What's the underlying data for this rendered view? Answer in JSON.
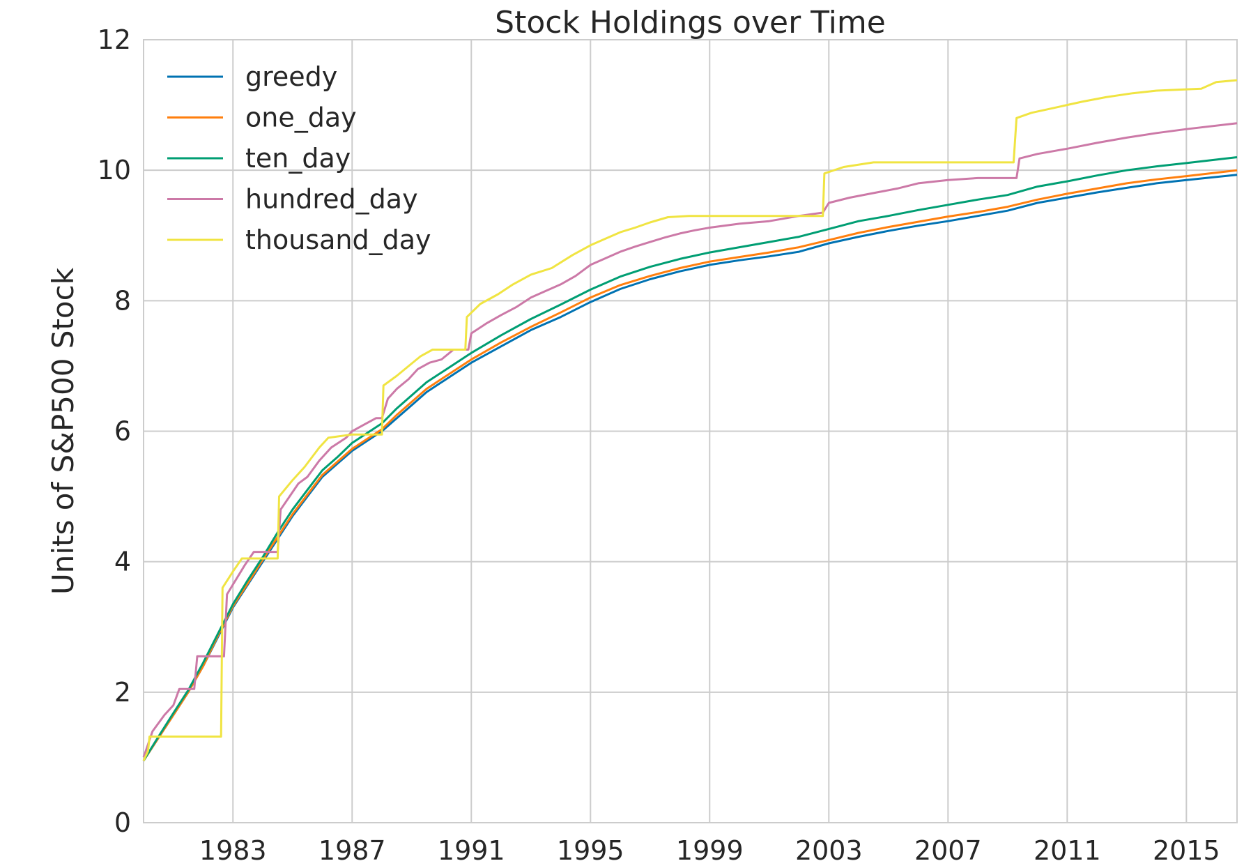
{
  "chart_data": {
    "type": "line",
    "title": "Stock Holdings over Time",
    "xlabel": "",
    "ylabel": "Units of S&P500 Stock",
    "xlim": [
      1980.0,
      2016.7
    ],
    "ylim": [
      0,
      12
    ],
    "x_ticks": [
      1983,
      1987,
      1991,
      1995,
      1999,
      2003,
      2007,
      2011,
      2015
    ],
    "y_ticks": [
      0,
      2,
      4,
      6,
      8,
      10,
      12
    ],
    "grid": true,
    "legend_position": "top-left",
    "series": [
      {
        "name": "greedy",
        "color": "#0072b2",
        "points": [
          [
            1980.0,
            0.95
          ],
          [
            1980.5,
            1.3
          ],
          [
            1981.0,
            1.65
          ],
          [
            1981.5,
            2.0
          ],
          [
            1982.0,
            2.4
          ],
          [
            1982.5,
            2.85
          ],
          [
            1983.0,
            3.3
          ],
          [
            1983.5,
            3.65
          ],
          [
            1984.0,
            4.0
          ],
          [
            1984.5,
            4.35
          ],
          [
            1985.0,
            4.7
          ],
          [
            1985.5,
            5.0
          ],
          [
            1986.0,
            5.3
          ],
          [
            1986.5,
            5.5
          ],
          [
            1987.0,
            5.7
          ],
          [
            1987.5,
            5.85
          ],
          [
            1988.0,
            6.0
          ],
          [
            1988.5,
            6.2
          ],
          [
            1989.0,
            6.4
          ],
          [
            1989.5,
            6.6
          ],
          [
            1990.0,
            6.75
          ],
          [
            1990.5,
            6.9
          ],
          [
            1991.0,
            7.05
          ],
          [
            1992.0,
            7.3
          ],
          [
            1993.0,
            7.55
          ],
          [
            1994.0,
            7.75
          ],
          [
            1995.0,
            7.98
          ],
          [
            1996.0,
            8.18
          ],
          [
            1997.0,
            8.33
          ],
          [
            1998.0,
            8.45
          ],
          [
            1999.0,
            8.55
          ],
          [
            2000.0,
            8.62
          ],
          [
            2001.0,
            8.68
          ],
          [
            2002.0,
            8.75
          ],
          [
            2003.0,
            8.88
          ],
          [
            2004.0,
            8.98
          ],
          [
            2005.0,
            9.07
          ],
          [
            2006.0,
            9.15
          ],
          [
            2007.0,
            9.22
          ],
          [
            2008.0,
            9.3
          ],
          [
            2009.0,
            9.38
          ],
          [
            2010.0,
            9.5
          ],
          [
            2011.0,
            9.58
          ],
          [
            2012.0,
            9.66
          ],
          [
            2013.0,
            9.73
          ],
          [
            2014.0,
            9.8
          ],
          [
            2015.0,
            9.85
          ],
          [
            2016.7,
            9.93
          ]
        ]
      },
      {
        "name": "one_day",
        "color": "#ff7f0e",
        "points": [
          [
            1980.0,
            0.95
          ],
          [
            1980.5,
            1.3
          ],
          [
            1981.0,
            1.65
          ],
          [
            1981.5,
            2.0
          ],
          [
            1982.0,
            2.4
          ],
          [
            1982.5,
            2.87
          ],
          [
            1983.0,
            3.32
          ],
          [
            1983.5,
            3.67
          ],
          [
            1984.0,
            4.03
          ],
          [
            1984.5,
            4.38
          ],
          [
            1985.0,
            4.73
          ],
          [
            1985.5,
            5.03
          ],
          [
            1986.0,
            5.33
          ],
          [
            1986.5,
            5.53
          ],
          [
            1987.0,
            5.73
          ],
          [
            1987.5,
            5.88
          ],
          [
            1988.0,
            6.03
          ],
          [
            1988.5,
            6.25
          ],
          [
            1989.0,
            6.45
          ],
          [
            1989.5,
            6.65
          ],
          [
            1990.0,
            6.8
          ],
          [
            1990.5,
            6.95
          ],
          [
            1991.0,
            7.1
          ],
          [
            1992.0,
            7.36
          ],
          [
            1993.0,
            7.6
          ],
          [
            1994.0,
            7.82
          ],
          [
            1995.0,
            8.05
          ],
          [
            1996.0,
            8.24
          ],
          [
            1997.0,
            8.38
          ],
          [
            1998.0,
            8.5
          ],
          [
            1999.0,
            8.6
          ],
          [
            2000.0,
            8.67
          ],
          [
            2001.0,
            8.74
          ],
          [
            2002.0,
            8.82
          ],
          [
            2003.0,
            8.93
          ],
          [
            2004.0,
            9.04
          ],
          [
            2005.0,
            9.13
          ],
          [
            2006.0,
            9.21
          ],
          [
            2007.0,
            9.29
          ],
          [
            2008.0,
            9.36
          ],
          [
            2009.0,
            9.44
          ],
          [
            2010.0,
            9.55
          ],
          [
            2011.0,
            9.64
          ],
          [
            2012.0,
            9.72
          ],
          [
            2013.0,
            9.8
          ],
          [
            2014.0,
            9.86
          ],
          [
            2015.0,
            9.91
          ],
          [
            2016.7,
            10.0
          ]
        ]
      },
      {
        "name": "ten_day",
        "color": "#009e73",
        "points": [
          [
            1980.0,
            0.95
          ],
          [
            1980.5,
            1.32
          ],
          [
            1981.0,
            1.68
          ],
          [
            1981.5,
            2.03
          ],
          [
            1982.0,
            2.45
          ],
          [
            1982.5,
            2.9
          ],
          [
            1983.0,
            3.35
          ],
          [
            1983.5,
            3.72
          ],
          [
            1984.0,
            4.07
          ],
          [
            1984.5,
            4.45
          ],
          [
            1985.0,
            4.8
          ],
          [
            1985.5,
            5.1
          ],
          [
            1986.0,
            5.4
          ],
          [
            1986.5,
            5.6
          ],
          [
            1987.0,
            5.82
          ],
          [
            1987.5,
            5.97
          ],
          [
            1988.0,
            6.12
          ],
          [
            1988.5,
            6.35
          ],
          [
            1989.0,
            6.55
          ],
          [
            1989.5,
            6.75
          ],
          [
            1990.0,
            6.9
          ],
          [
            1990.5,
            7.05
          ],
          [
            1991.0,
            7.2
          ],
          [
            1992.0,
            7.47
          ],
          [
            1993.0,
            7.72
          ],
          [
            1994.0,
            7.94
          ],
          [
            1995.0,
            8.17
          ],
          [
            1996.0,
            8.37
          ],
          [
            1997.0,
            8.52
          ],
          [
            1998.0,
            8.64
          ],
          [
            1999.0,
            8.74
          ],
          [
            2000.0,
            8.82
          ],
          [
            2001.0,
            8.9
          ],
          [
            2002.0,
            8.98
          ],
          [
            2003.0,
            9.1
          ],
          [
            2004.0,
            9.22
          ],
          [
            2005.0,
            9.3
          ],
          [
            2006.0,
            9.39
          ],
          [
            2007.0,
            9.47
          ],
          [
            2008.0,
            9.55
          ],
          [
            2009.0,
            9.62
          ],
          [
            2010.0,
            9.75
          ],
          [
            2011.0,
            9.83
          ],
          [
            2012.0,
            9.92
          ],
          [
            2013.0,
            10.0
          ],
          [
            2014.0,
            10.06
          ],
          [
            2015.0,
            10.11
          ],
          [
            2016.7,
            10.2
          ]
        ]
      },
      {
        "name": "hundred_day",
        "color": "#cc79a7",
        "points": [
          [
            1980.0,
            1.0
          ],
          [
            1980.3,
            1.4
          ],
          [
            1980.7,
            1.65
          ],
          [
            1981.0,
            1.8
          ],
          [
            1981.2,
            2.05
          ],
          [
            1981.7,
            2.05
          ],
          [
            1981.8,
            2.55
          ],
          [
            1982.7,
            2.55
          ],
          [
            1982.8,
            3.5
          ],
          [
            1983.0,
            3.65
          ],
          [
            1983.4,
            3.95
          ],
          [
            1983.7,
            4.15
          ],
          [
            1984.5,
            4.15
          ],
          [
            1984.6,
            4.8
          ],
          [
            1984.9,
            5.0
          ],
          [
            1985.2,
            5.2
          ],
          [
            1985.5,
            5.3
          ],
          [
            1985.9,
            5.55
          ],
          [
            1986.3,
            5.75
          ],
          [
            1986.8,
            5.9
          ],
          [
            1987.0,
            6.0
          ],
          [
            1987.4,
            6.1
          ],
          [
            1987.8,
            6.2
          ],
          [
            1988.0,
            6.2
          ],
          [
            1988.2,
            6.5
          ],
          [
            1988.5,
            6.65
          ],
          [
            1988.9,
            6.8
          ],
          [
            1989.2,
            6.95
          ],
          [
            1989.6,
            7.05
          ],
          [
            1990.0,
            7.1
          ],
          [
            1990.4,
            7.25
          ],
          [
            1990.9,
            7.25
          ],
          [
            1991.0,
            7.5
          ],
          [
            1991.5,
            7.65
          ],
          [
            1992.0,
            7.78
          ],
          [
            1992.5,
            7.9
          ],
          [
            1993.0,
            8.05
          ],
          [
            1993.5,
            8.15
          ],
          [
            1994.0,
            8.25
          ],
          [
            1994.5,
            8.38
          ],
          [
            1995.0,
            8.55
          ],
          [
            1995.5,
            8.65
          ],
          [
            1996.0,
            8.75
          ],
          [
            1996.5,
            8.83
          ],
          [
            1997.0,
            8.9
          ],
          [
            1997.5,
            8.97
          ],
          [
            1998.0,
            9.03
          ],
          [
            1998.5,
            9.08
          ],
          [
            1999.0,
            9.12
          ],
          [
            2000.0,
            9.18
          ],
          [
            2001.0,
            9.22
          ],
          [
            2002.0,
            9.3
          ],
          [
            2002.8,
            9.35
          ],
          [
            2003.0,
            9.5
          ],
          [
            2003.7,
            9.58
          ],
          [
            2004.5,
            9.65
          ],
          [
            2005.3,
            9.72
          ],
          [
            2006.0,
            9.8
          ],
          [
            2007.0,
            9.85
          ],
          [
            2008.0,
            9.88
          ],
          [
            2009.3,
            9.88
          ],
          [
            2009.4,
            10.18
          ],
          [
            2010.0,
            10.25
          ],
          [
            2011.0,
            10.33
          ],
          [
            2012.0,
            10.42
          ],
          [
            2013.0,
            10.5
          ],
          [
            2014.0,
            10.57
          ],
          [
            2015.0,
            10.63
          ],
          [
            2016.7,
            10.72
          ]
        ]
      },
      {
        "name": "thousand_day",
        "color": "#f0e442",
        "points": [
          [
            1980.0,
            0.95
          ],
          [
            1980.15,
            1.1
          ],
          [
            1980.2,
            1.32
          ],
          [
            1982.6,
            1.32
          ],
          [
            1982.65,
            3.6
          ],
          [
            1983.0,
            3.85
          ],
          [
            1983.3,
            4.05
          ],
          [
            1984.5,
            4.05
          ],
          [
            1984.55,
            5.0
          ],
          [
            1985.0,
            5.25
          ],
          [
            1985.4,
            5.45
          ],
          [
            1985.9,
            5.75
          ],
          [
            1986.2,
            5.9
          ],
          [
            1987.0,
            5.95
          ],
          [
            1987.5,
            5.95
          ],
          [
            1988.0,
            5.95
          ],
          [
            1988.05,
            6.7
          ],
          [
            1988.5,
            6.85
          ],
          [
            1988.9,
            7.0
          ],
          [
            1989.3,
            7.15
          ],
          [
            1989.7,
            7.25
          ],
          [
            1990.8,
            7.25
          ],
          [
            1990.85,
            7.75
          ],
          [
            1991.3,
            7.95
          ],
          [
            1991.9,
            8.1
          ],
          [
            1992.4,
            8.25
          ],
          [
            1993.0,
            8.4
          ],
          [
            1993.7,
            8.5
          ],
          [
            1994.4,
            8.7
          ],
          [
            1995.0,
            8.85
          ],
          [
            1995.5,
            8.95
          ],
          [
            1996.0,
            9.05
          ],
          [
            1996.5,
            9.12
          ],
          [
            1997.0,
            9.2
          ],
          [
            1997.6,
            9.28
          ],
          [
            1998.3,
            9.3
          ],
          [
            2002.8,
            9.3
          ],
          [
            2002.85,
            9.95
          ],
          [
            2003.5,
            10.05
          ],
          [
            2004.5,
            10.12
          ],
          [
            2009.2,
            10.12
          ],
          [
            2009.3,
            10.8
          ],
          [
            2009.8,
            10.88
          ],
          [
            2010.5,
            10.95
          ],
          [
            2011.5,
            11.05
          ],
          [
            2012.3,
            11.12
          ],
          [
            2013.2,
            11.18
          ],
          [
            2014.0,
            11.22
          ],
          [
            2015.5,
            11.25
          ],
          [
            2016.0,
            11.35
          ],
          [
            2016.7,
            11.38
          ]
        ]
      }
    ]
  }
}
